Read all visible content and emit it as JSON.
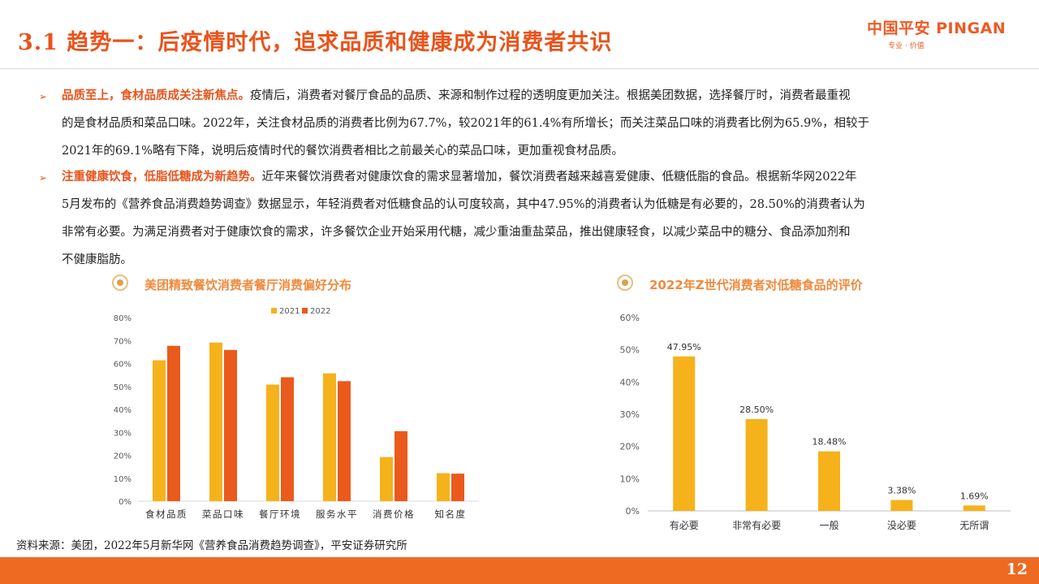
{
  "header": {
    "title": "3.1 趋势一：后疫情时代，追求品质和健康成为消费者共识",
    "logo_text": "中国平安 PINGAN",
    "logo_sub": "专业 · 价值"
  },
  "paragraphs": [
    {
      "bullet": "➢",
      "highlight": "品质至上，食材品质成关注新焦点。",
      "lines": [
        "疫情后，消费者对餐厅食品的品质、来源和制作过程的透明度更加关注。根据美团数据，选择餐厅时，消费者最重视",
        "的是食材品质和菜品口味。2022年，关注食材品质的消费者比例为67.7%，较2021年的61.4%有所增长；而关注菜品口味的消费者比例为65.9%，相较于",
        "2021年的69.1%略有下降，说明后疫情时代的餐饮消费者相比之前最关心的菜品口味，更加重视食材品质。"
      ]
    },
    {
      "bullet": "➢",
      "highlight": "注重健康饮食，低脂低糖成为新趋势。",
      "lines": [
        "近年来餐饮消费者对健康饮食的需求显著增加，餐饮消费者越来越喜爱健康、低糖低脂的食品。根据新华网2022年",
        "5月发布的《营养食品消费趋势调查》数据显示，年轻消费者对低糖食品的认可度较高，其中47.95%的消费者认为低糖是有必要的，28.50%的消费者认为",
        "非常有必要。为满足消费者对于健康饮食的需求，许多餐饮企业开始采用代糖，减少重油重盐菜品，推出健康轻食，以减少菜品中的糖分、食品添加剂和",
        "不健康脂肪。"
      ]
    }
  ],
  "charts": {
    "left_title": "美团精致餐饮消费者餐厅消费偏好分布",
    "right_title": "2022年Z世代消费者对低糖食品的评价"
  },
  "chart_data": [
    {
      "type": "bar",
      "title": "美团精致餐饮消费者餐厅消费偏好分布",
      "categories": [
        "食材品质",
        "菜品口味",
        "餐厅环境",
        "服务水平",
        "消费价格",
        "知名度"
      ],
      "series": [
        {
          "name": "2021",
          "color": "#f5b21b",
          "values": [
            61.4,
            69.1,
            50.8,
            55.7,
            19.2,
            12.2
          ]
        },
        {
          "name": "2022",
          "color": "#ea5a1c",
          "values": [
            67.7,
            65.9,
            54.0,
            52.3,
            30.5,
            12.0
          ]
        }
      ],
      "yticks": [
        "0%",
        "10%",
        "20%",
        "30%",
        "40%",
        "50%",
        "60%",
        "70%",
        "80%"
      ],
      "ylim": [
        0,
        80
      ],
      "legend_position": "top",
      "grid": false
    },
    {
      "type": "bar",
      "title": "2022年Z世代消费者对低糖食品的评价",
      "categories": [
        "有必要",
        "非常有必要",
        "一般",
        "没必要",
        "无所谓"
      ],
      "series": [
        {
          "color": "#f5b21b",
          "values": [
            47.95,
            28.5,
            18.48,
            3.38,
            1.69
          ]
        }
      ],
      "data_labels": [
        "47.95%",
        "28.50%",
        "18.48%",
        "3.38%",
        "1.69%"
      ],
      "yticks": [
        "0%",
        "10%",
        "20%",
        "30%",
        "40%",
        "50%",
        "60%"
      ],
      "ylim": [
        0,
        60
      ],
      "grid": false
    }
  ],
  "footer": {
    "source": "资料来源：美团，2022年5月新华网《营养食品消费趋势调查》，平安证券研究所",
    "page": "12"
  }
}
